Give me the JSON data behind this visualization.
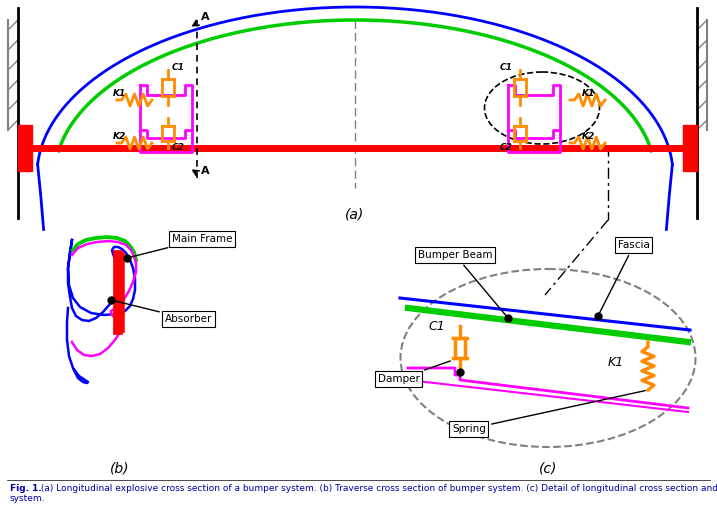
{
  "fig_caption_bold": "Fig. 1.",
  "fig_caption_rest": " (a) Longitudinal explosive cross section of a bumper system. (b) Traverse cross section of bumper system. (c) Detail of longitudinal cross section and damping model system.",
  "label_a": "(a)",
  "label_b": "(b)",
  "label_c": "(c)",
  "colors": {
    "blue": "#0000FF",
    "green": "#00CC00",
    "red": "#FF0000",
    "magenta": "#FF00FF",
    "orange": "#FF8C00",
    "black": "#000000",
    "gray": "#808080",
    "white": "#FFFFFF"
  }
}
